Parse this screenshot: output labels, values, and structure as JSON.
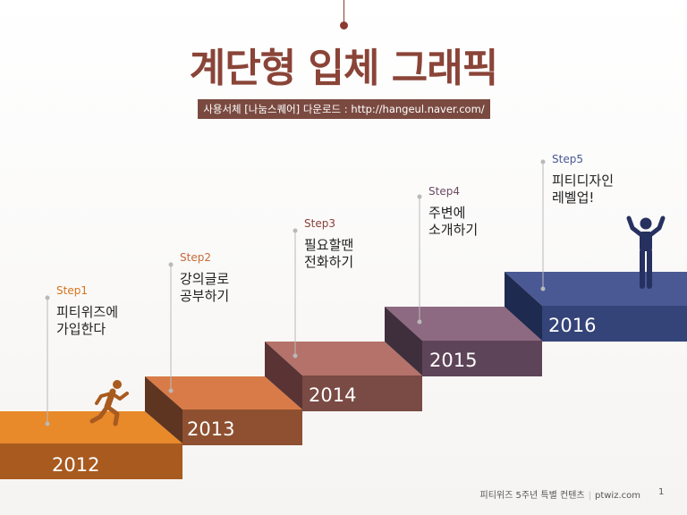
{
  "title": "계단형 입체 그래픽",
  "subtitle": "사용서체 [나눔스퀘어] 다운로드 : http://hangeul.naver.com/",
  "steps": [
    {
      "label": "Step1",
      "desc": "피티위즈에\n가입한다",
      "year": "2012",
      "color": "#e8892a"
    },
    {
      "label": "Step2",
      "desc": "강의글로\n공부하기",
      "year": "2013",
      "color": "#d97b48"
    },
    {
      "label": "Step3",
      "desc": "필요할땐\n전화하기",
      "year": "2014",
      "color": "#b4726a"
    },
    {
      "label": "Step4",
      "desc": "주변에\n소개하기",
      "year": "2015",
      "color": "#8d6a82"
    },
    {
      "label": "Step5",
      "desc": "피티디자인\n레벨업!",
      "year": "2016",
      "color": "#4a5894"
    }
  ],
  "footer": {
    "text": "피티위즈 5주년 특별 컨텐츠",
    "site": "ptwiz.com",
    "page": "1"
  },
  "icons": [
    "running-person-icon",
    "cheering-person-icon"
  ]
}
